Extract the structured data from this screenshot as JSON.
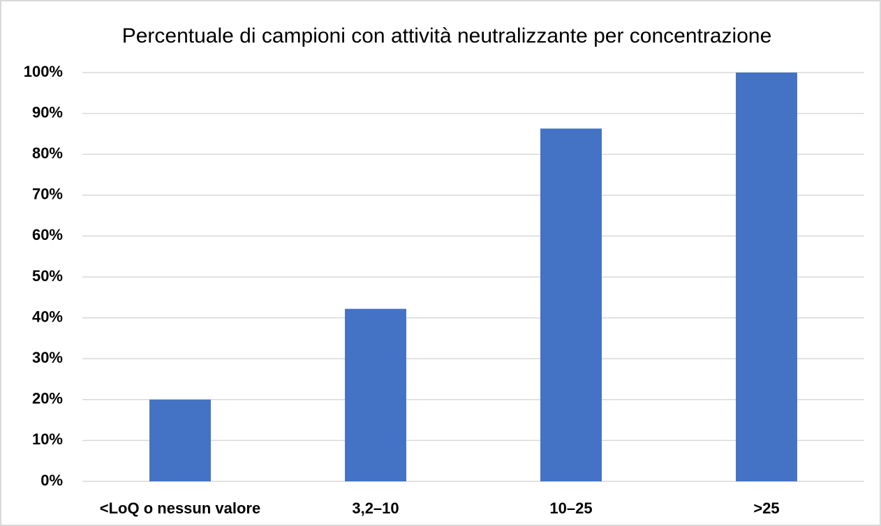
{
  "chart_data": {
    "type": "bar",
    "title": "Percentuale di campioni con attività neutralizzante per concentrazione",
    "categories": [
      "<LoQ o nessun valore",
      "3,2–10",
      "10–25",
      ">25"
    ],
    "values": [
      20,
      42.2,
      86.3,
      100
    ],
    "color": "#4472c4",
    "ylim": [
      0,
      100
    ],
    "yticks": [
      {
        "value": 0,
        "label": "0%"
      },
      {
        "value": 10,
        "label": "10%"
      },
      {
        "value": 20,
        "label": "20%"
      },
      {
        "value": 30,
        "label": "30%"
      },
      {
        "value": 40,
        "label": "40%"
      },
      {
        "value": 50,
        "label": "50%"
      },
      {
        "value": 60,
        "label": "60%"
      },
      {
        "value": 70,
        "label": "70%"
      },
      {
        "value": 80,
        "label": "80%"
      },
      {
        "value": 90,
        "label": "90%"
      },
      {
        "value": 100,
        "label": "100%"
      }
    ],
    "grid": true
  }
}
